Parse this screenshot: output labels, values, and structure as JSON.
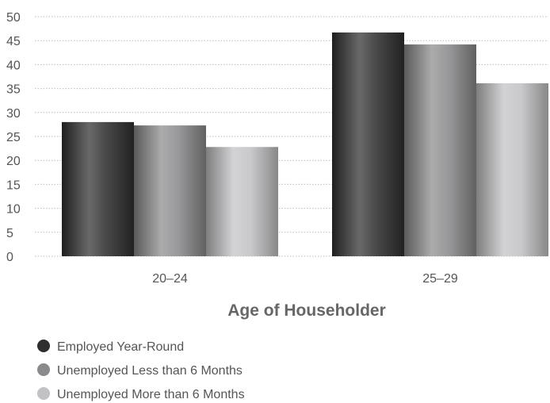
{
  "chart_data": {
    "type": "bar",
    "categories": [
      "20–24",
      "25–29"
    ],
    "series": [
      {
        "name": "Employed Year-Round",
        "values": [
          28,
          46.7
        ],
        "color": "#2f2f2f"
      },
      {
        "name": "Unemployed Less than 6 Months",
        "values": [
          27.3,
          44.2
        ],
        "color": "#8a8a8c"
      },
      {
        "name": "Unemployed More than 6 Months",
        "values": [
          22.8,
          36.1
        ],
        "color": "#c2c2c4"
      }
    ],
    "xlabel": "Age of Householder",
    "ylabel": "",
    "ylim": [
      0,
      50
    ],
    "yticks": [
      0,
      5,
      10,
      15,
      20,
      25,
      30,
      35,
      40,
      45,
      50
    ],
    "grid": true,
    "legend_position": "bottom-left"
  }
}
